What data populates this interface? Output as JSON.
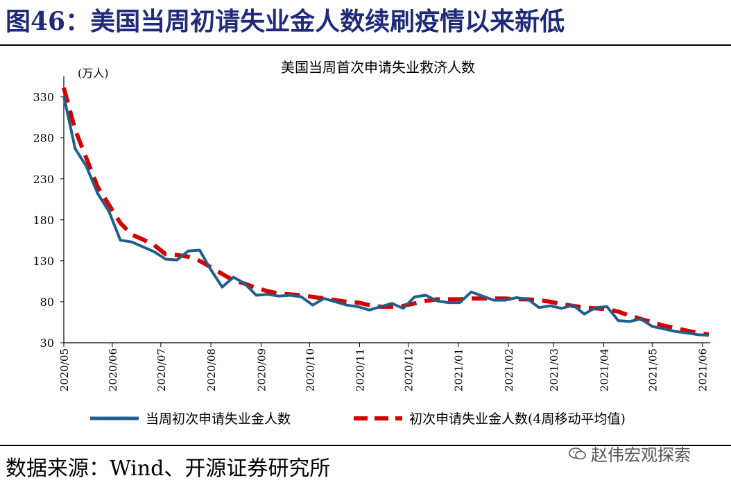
{
  "figure": {
    "title": "图46：美国当周初请失业金人数续刷疫情以来新低",
    "source": "数据来源：Wind、开源证券研究所",
    "watermark": "赵伟宏观探索"
  },
  "chart_data": {
    "type": "line",
    "title": "美国当周首次申请失业救济人数",
    "ylabel": "(万人)",
    "xlabel": "",
    "ylim": [
      30,
      350
    ],
    "yticks": [
      30,
      80,
      130,
      180,
      230,
      280,
      330
    ],
    "x_start": "2020-05-02",
    "x_end": "2021-06-05",
    "xticks": [
      {
        "label": "2020/05",
        "date": "2020-05-01"
      },
      {
        "label": "2020/06",
        "date": "2020-06-01"
      },
      {
        "label": "2020/07",
        "date": "2020-07-01"
      },
      {
        "label": "2020/08",
        "date": "2020-08-01"
      },
      {
        "label": "2020/09",
        "date": "2020-09-01"
      },
      {
        "label": "2020/10",
        "date": "2020-10-01"
      },
      {
        "label": "2020/11",
        "date": "2020-11-01"
      },
      {
        "label": "2020/12",
        "date": "2020-12-01"
      },
      {
        "label": "2021/01",
        "date": "2021-01-01"
      },
      {
        "label": "2021/02",
        "date": "2021-02-01"
      },
      {
        "label": "2021/03",
        "date": "2021-03-01"
      },
      {
        "label": "2021/04",
        "date": "2021-04-01"
      },
      {
        "label": "2021/05",
        "date": "2021-05-01"
      },
      {
        "label": "2021/06",
        "date": "2021-06-01"
      }
    ],
    "legend_position": "bottom",
    "grid": false,
    "series": [
      {
        "name": "当周初次申请失业金人数",
        "color": "#1f5f8b",
        "style": "solid",
        "x": [
          "2020-05-02",
          "2020-05-09",
          "2020-05-16",
          "2020-05-23",
          "2020-05-30",
          "2020-06-06",
          "2020-06-13",
          "2020-06-20",
          "2020-06-27",
          "2020-07-04",
          "2020-07-11",
          "2020-07-18",
          "2020-07-25",
          "2020-08-01",
          "2020-08-08",
          "2020-08-15",
          "2020-08-22",
          "2020-08-29",
          "2020-09-05",
          "2020-09-12",
          "2020-09-19",
          "2020-09-26",
          "2020-10-03",
          "2020-10-10",
          "2020-10-17",
          "2020-10-24",
          "2020-10-31",
          "2020-11-07",
          "2020-11-14",
          "2020-11-21",
          "2020-11-28",
          "2020-12-05",
          "2020-12-12",
          "2020-12-19",
          "2020-12-26",
          "2021-01-02",
          "2021-01-09",
          "2021-01-16",
          "2021-01-23",
          "2021-01-30",
          "2021-02-06",
          "2021-02-13",
          "2021-02-20",
          "2021-02-27",
          "2021-03-06",
          "2021-03-13",
          "2021-03-20",
          "2021-03-27",
          "2021-04-03",
          "2021-04-10",
          "2021-04-17",
          "2021-04-24",
          "2021-05-01",
          "2021-05-08",
          "2021-05-15",
          "2021-05-22",
          "2021-05-29",
          "2021-06-05"
        ],
        "values": [
          331,
          267,
          245,
          212,
          190,
          155,
          153,
          147,
          141,
          132,
          131,
          142,
          143,
          119,
          98,
          110,
          102,
          88,
          89,
          87,
          88,
          86,
          76,
          84,
          80,
          76,
          74,
          70,
          74,
          78,
          72,
          86,
          88,
          81,
          79,
          79,
          92,
          87,
          82,
          82,
          85,
          83,
          73,
          75,
          72,
          76,
          65,
          73,
          74,
          57,
          56,
          59,
          50,
          47,
          44,
          42,
          40,
          39
        ]
      },
      {
        "name": "初次申请失业金人数(4周移动平均值)",
        "color": "#d40000",
        "style": "dashed",
        "x": [
          "2020-05-02",
          "2020-05-09",
          "2020-05-16",
          "2020-05-23",
          "2020-05-30",
          "2020-06-06",
          "2020-06-13",
          "2020-06-20",
          "2020-06-27",
          "2020-07-04",
          "2020-07-11",
          "2020-07-18",
          "2020-07-25",
          "2020-08-01",
          "2020-08-08",
          "2020-08-15",
          "2020-08-22",
          "2020-08-29",
          "2020-09-05",
          "2020-09-12",
          "2020-09-19",
          "2020-09-26",
          "2020-10-03",
          "2020-10-10",
          "2020-10-17",
          "2020-10-24",
          "2020-10-31",
          "2020-11-07",
          "2020-11-14",
          "2020-11-21",
          "2020-11-28",
          "2020-12-05",
          "2020-12-12",
          "2020-12-19",
          "2020-12-26",
          "2021-01-02",
          "2021-01-09",
          "2021-01-16",
          "2021-01-23",
          "2021-01-30",
          "2021-02-06",
          "2021-02-13",
          "2021-02-20",
          "2021-02-27",
          "2021-03-06",
          "2021-03-13",
          "2021-03-20",
          "2021-03-27",
          "2021-04-03",
          "2021-04-10",
          "2021-04-17",
          "2021-04-24",
          "2021-05-01",
          "2021-05-08",
          "2021-05-15",
          "2021-05-22",
          "2021-05-29",
          "2021-06-05"
        ],
        "values": [
          341,
          290,
          255,
          220,
          198,
          176,
          162,
          156,
          149,
          138,
          137,
          135,
          130,
          122,
          114,
          106,
          102,
          97,
          93,
          90,
          89,
          88,
          86,
          84,
          82,
          80,
          79,
          76,
          74,
          74,
          75,
          78,
          81,
          83,
          83,
          83,
          84,
          84,
          84,
          84,
          83,
          83,
          82,
          80,
          77,
          75,
          73,
          72,
          71,
          68,
          63,
          59,
          55,
          51,
          48,
          45,
          42,
          40
        ]
      }
    ]
  }
}
